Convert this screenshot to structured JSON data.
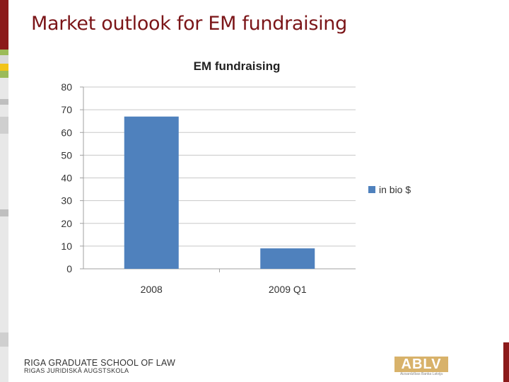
{
  "slide": {
    "title": "Market outlook for EM fundraising"
  },
  "footer": {
    "school_name": "RIGA GRADUATE SCHOOL OF LAW",
    "school_name_local": "RIGAS JURIDISKĀ AUGSTSKOLA",
    "logo_text": "ABLV",
    "logo_subtext": "Aizsardzības Banka Latvija"
  },
  "colors": {
    "title": "#7b1518",
    "bar": "#4f81bd",
    "accent_dark_red": "#8b1a1a",
    "accent_green": "#9bbb59",
    "accent_yellow": "#f2c418",
    "logo_gold": "#d8b26a"
  },
  "chart_data": {
    "type": "bar",
    "title": "EM fundraising",
    "categories": [
      "2008",
      "2009 Q1"
    ],
    "series": [
      {
        "name": "in bio $",
        "values": [
          67,
          9
        ]
      }
    ],
    "ylim": [
      0,
      80
    ],
    "yticks": [
      0,
      10,
      20,
      30,
      40,
      50,
      60,
      70,
      80
    ],
    "xlabel": "",
    "ylabel": "",
    "grid": true,
    "legend": "right"
  }
}
